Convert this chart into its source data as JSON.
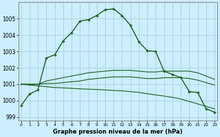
{
  "background_color": "#cceeff",
  "grid_color": "#aad4e0",
  "line_color": "#1a5c1a",
  "xlabel": "Graphe pression niveau de la mer (hPa)",
  "ylim": [
    998.8,
    1006.0
  ],
  "xlim": [
    -0.3,
    23.3
  ],
  "yticks": [
    999,
    1000,
    1001,
    1002,
    1003,
    1004,
    1005
  ],
  "xticks": [
    0,
    1,
    2,
    3,
    4,
    5,
    6,
    7,
    8,
    9,
    10,
    11,
    12,
    13,
    14,
    15,
    16,
    17,
    18,
    19,
    20,
    21,
    22,
    23
  ],
  "series": {
    "main": [
      999.7,
      1000.4,
      1000.65,
      1002.6,
      1002.8,
      1003.65,
      1004.15,
      1004.85,
      1004.95,
      1005.2,
      1005.55,
      1005.6,
      1005.2,
      1004.6,
      1003.6,
      1003.05,
      1003.0,
      1001.8,
      1001.6,
      1001.4,
      1000.55,
      1000.5,
      999.5,
      999.3
    ],
    "line_upper": [
      1001.0,
      1001.0,
      1001.0,
      1001.2,
      1001.3,
      1001.4,
      1001.5,
      1001.6,
      1001.7,
      1001.75,
      1001.8,
      1001.85,
      1001.85,
      1001.85,
      1001.8,
      1001.75,
      1001.75,
      1001.8,
      1001.8,
      1001.8,
      1001.8,
      1001.7,
      1001.5,
      1001.3
    ],
    "line_mid": [
      1001.0,
      1001.0,
      1001.0,
      1001.05,
      1001.05,
      1001.1,
      1001.15,
      1001.2,
      1001.3,
      1001.35,
      1001.4,
      1001.45,
      1001.45,
      1001.45,
      1001.4,
      1001.35,
      1001.35,
      1001.4,
      1001.4,
      1001.4,
      1001.35,
      1001.25,
      1001.1,
      1000.95
    ],
    "line_lower": [
      1001.0,
      1000.95,
      1000.9,
      1000.85,
      1000.8,
      1000.78,
      1000.75,
      1000.72,
      1000.7,
      1000.68,
      1000.65,
      1000.62,
      1000.6,
      1000.55,
      1000.5,
      1000.42,
      1000.35,
      1000.28,
      1000.2,
      1000.1,
      999.95,
      999.8,
      999.65,
      999.5
    ]
  }
}
